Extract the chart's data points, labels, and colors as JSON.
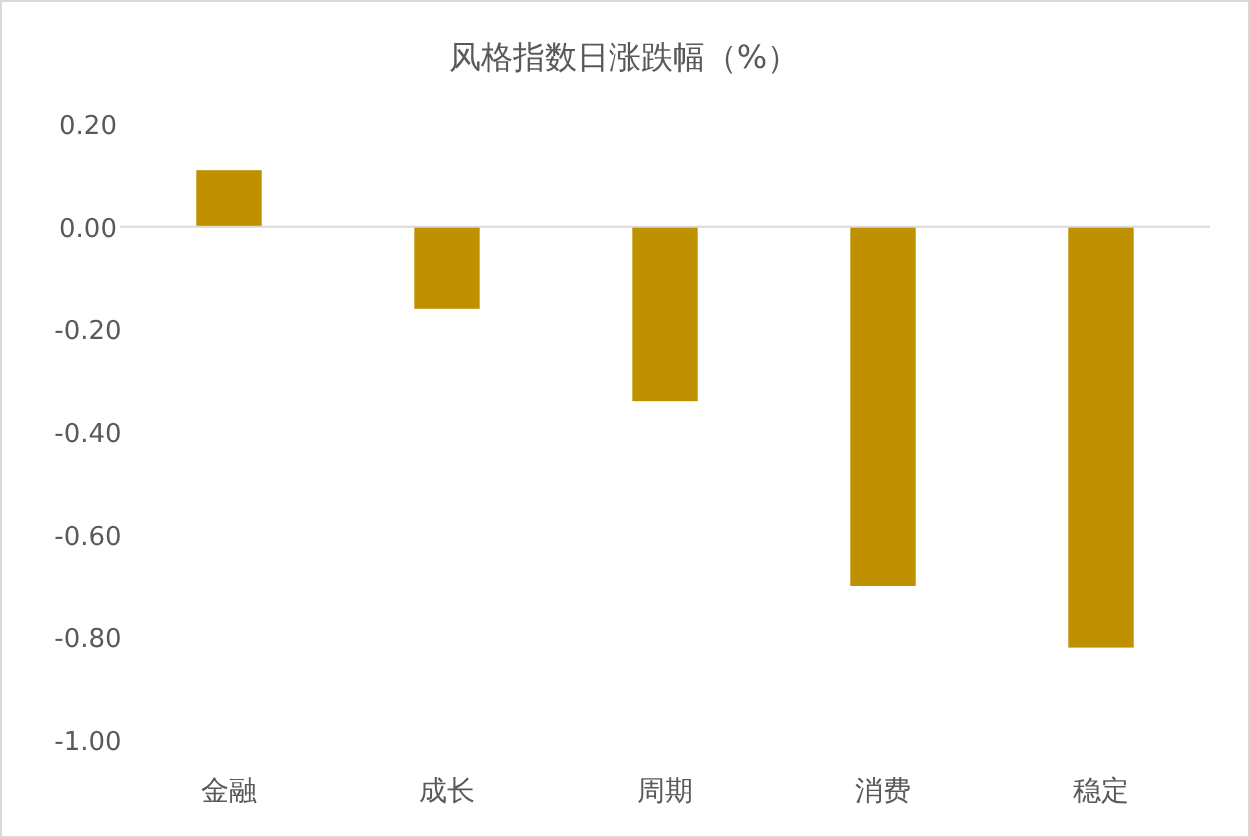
{
  "chart_data": {
    "type": "bar",
    "title": "风格指数日涨跌幅（%）",
    "categories": [
      "金融",
      "成长",
      "周期",
      "消费",
      "稳定"
    ],
    "values": [
      0.11,
      -0.16,
      -0.34,
      -0.7,
      -0.82
    ],
    "color": "#bf9000",
    "ylim": [
      -1.0,
      0.2
    ],
    "yticks": [
      {
        "value": 0.2,
        "label": "0.20"
      },
      {
        "value": 0.0,
        "label": "0.00"
      },
      {
        "value": -0.2,
        "label": "-0.20"
      },
      {
        "value": -0.4,
        "label": "-0.40"
      },
      {
        "value": -0.6,
        "label": "-0.60"
      },
      {
        "value": -0.8,
        "label": "-0.80"
      },
      {
        "value": -1.0,
        "label": "-1.00"
      }
    ],
    "legend": false
  }
}
